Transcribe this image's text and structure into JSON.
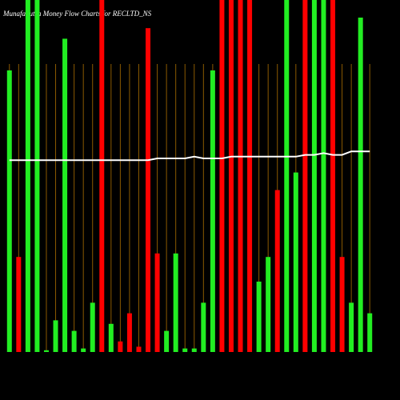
{
  "chart_data": {
    "type": "bar",
    "title": "MunafaSutra Money Flow Charts for RECLTD_NS",
    "categories": [
      null,
      null,
      null,
      null,
      null,
      null,
      null,
      null,
      null,
      null,
      null,
      null,
      null,
      null,
      null,
      null,
      null,
      null,
      null,
      null,
      null,
      null,
      null,
      null,
      null,
      null,
      null,
      null,
      null,
      null,
      null,
      null,
      null,
      null,
      null,
      null,
      null,
      null,
      null,
      null
    ],
    "series": [
      {
        "type": "bar",
        "values": [
          80,
          27,
          100,
          100,
          0.5,
          9,
          89,
          6,
          1,
          14,
          100,
          8,
          3,
          11,
          1.5,
          92,
          28,
          6,
          28,
          1,
          1,
          14,
          80,
          100,
          100,
          100,
          100,
          20,
          27,
          46,
          100,
          51,
          100,
          100,
          100,
          100,
          27,
          14,
          95,
          11
        ],
        "colors": [
          "#22ee22",
          "#ff0000",
          "#22ee22",
          "#22ee22",
          "#22ee22",
          "#22ee22",
          "#22ee22",
          "#22ee22",
          "#22ee22",
          "#22ee22",
          "#ff0000",
          "#22ee22",
          "#ff0000",
          "#ff0000",
          "#ff0000",
          "#ff0000",
          "#ff0000",
          "#22ee22",
          "#22ee22",
          "#22ee22",
          "#22ee22",
          "#22ee22",
          "#22ee22",
          "#ff0000",
          "#ff0000",
          "#ff0000",
          "#ff0000",
          "#22ee22",
          "#22ee22",
          "#ff0000",
          "#22ee22",
          "#22ee22",
          "#ff0000",
          "#22ee22",
          "#22ee22",
          "#ff0000",
          "#ff0000",
          "#22ee22",
          "#22ee22",
          "#22ee22"
        ]
      },
      {
        "type": "line",
        "color": "#ffffff",
        "values": [
          54.5,
          54.5,
          54.5,
          54.5,
          54.5,
          54.5,
          54.5,
          54.5,
          54.5,
          54.5,
          54.5,
          54.5,
          54.5,
          54.5,
          54.5,
          54.5,
          55,
          55,
          55,
          55,
          55.5,
          55,
          55,
          55,
          55.5,
          55.5,
          55.5,
          55.5,
          55.5,
          55.5,
          55.5,
          55.5,
          56,
          56,
          56.5,
          56,
          56,
          57,
          57,
          57
        ]
      }
    ],
    "ylim": [
      0,
      100
    ],
    "grid": true
  }
}
